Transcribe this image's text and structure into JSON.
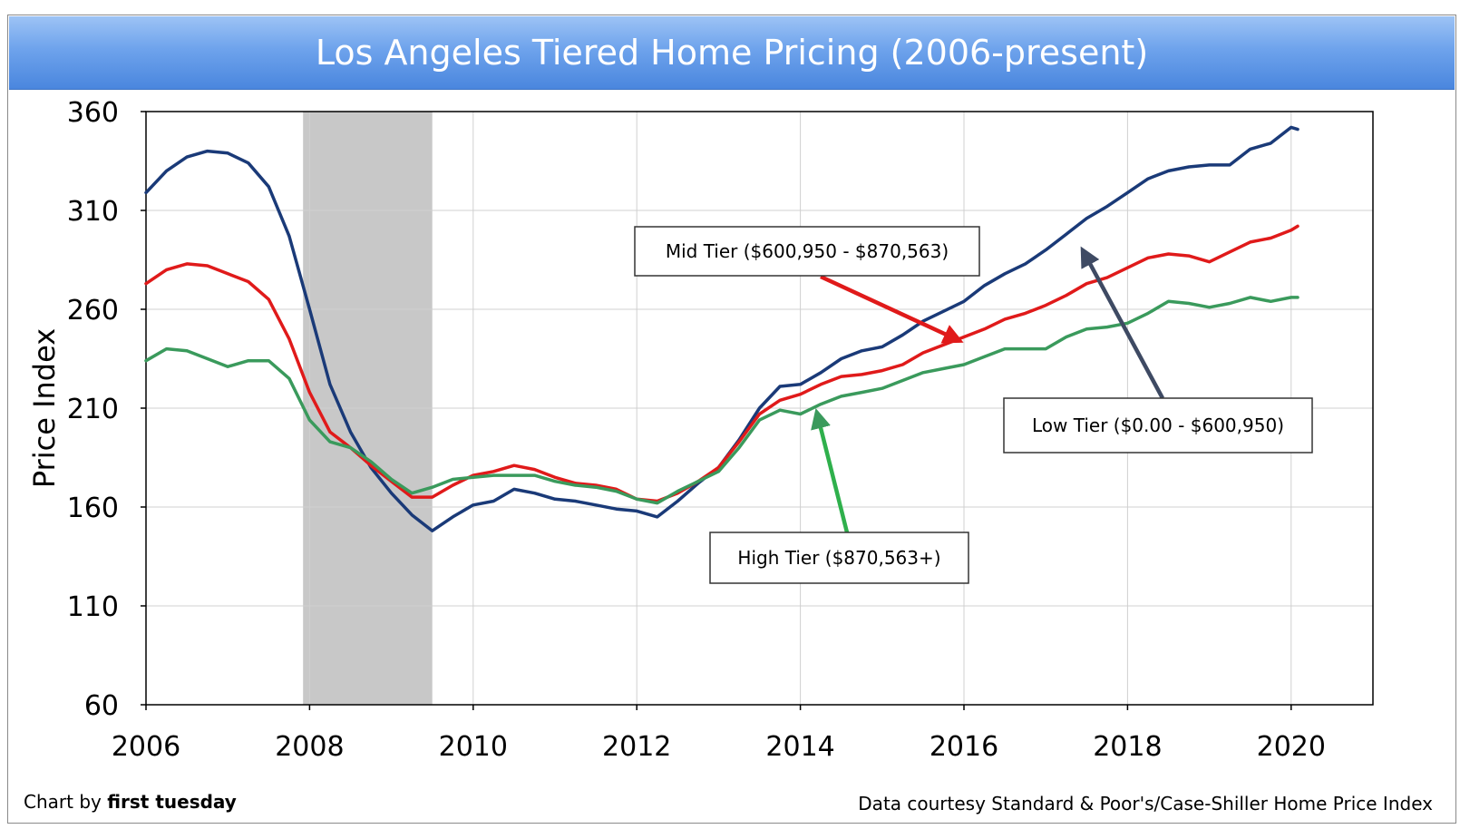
{
  "footer": {
    "credit_prefix": "Chart by ",
    "credit_brand": "first tuesday",
    "source": "Data courtesy Standard & Poor's/Case-Shiller Home Price Index"
  },
  "chart_data": {
    "type": "line",
    "title": "Los Angeles Tiered Home Pricing (2006-present)",
    "xlabel": "",
    "ylabel": "Price Index",
    "xlim": [
      2006,
      2021
    ],
    "ylim": [
      60,
      360
    ],
    "x_ticks": [
      2006,
      2008,
      2010,
      2012,
      2014,
      2016,
      2018,
      2020
    ],
    "y_ticks": [
      60,
      110,
      160,
      210,
      260,
      310,
      360
    ],
    "grid": true,
    "recession_shading": {
      "start": 2007.92,
      "end": 2009.5,
      "color": "#c8c8c8"
    },
    "series": [
      {
        "name": "Low Tier ($0.00 - $600,950)",
        "color": "#1a3a78",
        "x": [
          2006.0,
          2006.25,
          2006.5,
          2006.75,
          2007.0,
          2007.25,
          2007.5,
          2007.75,
          2008.0,
          2008.25,
          2008.5,
          2008.75,
          2009.0,
          2009.25,
          2009.5,
          2009.75,
          2010.0,
          2010.25,
          2010.5,
          2010.75,
          2011.0,
          2011.25,
          2011.5,
          2011.75,
          2012.0,
          2012.25,
          2012.5,
          2012.75,
          2013.0,
          2013.25,
          2013.5,
          2013.75,
          2014.0,
          2014.25,
          2014.5,
          2014.75,
          2015.0,
          2015.25,
          2015.5,
          2015.75,
          2016.0,
          2016.25,
          2016.5,
          2016.75,
          2017.0,
          2017.25,
          2017.5,
          2017.75,
          2018.0,
          2018.25,
          2018.5,
          2018.75,
          2019.0,
          2019.25,
          2019.5,
          2019.75,
          2020.0,
          2020.08
        ],
        "values": [
          319,
          330,
          337,
          340,
          339,
          334,
          322,
          297,
          260,
          222,
          198,
          180,
          167,
          156,
          148,
          155,
          161,
          163,
          169,
          167,
          164,
          163,
          161,
          159,
          158,
          155,
          163,
          172,
          180,
          194,
          210,
          221,
          222,
          228,
          235,
          239,
          241,
          247,
          254,
          259,
          264,
          272,
          278,
          283,
          290,
          298,
          306,
          312,
          319,
          326,
          330,
          332,
          333,
          333,
          341,
          344,
          352,
          351
        ]
      },
      {
        "name": "Mid Tier ($600,950 - $870,563)",
        "color": "#e01a1a",
        "x": [
          2006.0,
          2006.25,
          2006.5,
          2006.75,
          2007.0,
          2007.25,
          2007.5,
          2007.75,
          2008.0,
          2008.25,
          2008.5,
          2008.75,
          2009.0,
          2009.25,
          2009.5,
          2009.75,
          2010.0,
          2010.25,
          2010.5,
          2010.75,
          2011.0,
          2011.25,
          2011.5,
          2011.75,
          2012.0,
          2012.25,
          2012.5,
          2012.75,
          2013.0,
          2013.25,
          2013.5,
          2013.75,
          2014.0,
          2014.25,
          2014.5,
          2014.75,
          2015.0,
          2015.25,
          2015.5,
          2015.75,
          2016.0,
          2016.25,
          2016.5,
          2016.75,
          2017.0,
          2017.25,
          2017.5,
          2017.75,
          2018.0,
          2018.25,
          2018.5,
          2018.75,
          2019.0,
          2019.25,
          2019.5,
          2019.75,
          2020.0,
          2020.08
        ],
        "values": [
          273,
          280,
          283,
          282,
          278,
          274,
          265,
          245,
          218,
          198,
          190,
          181,
          173,
          165,
          165,
          171,
          176,
          178,
          181,
          179,
          175,
          172,
          171,
          169,
          164,
          163,
          167,
          173,
          180,
          193,
          207,
          214,
          217,
          222,
          226,
          227,
          229,
          232,
          238,
          242,
          246,
          250,
          255,
          258,
          262,
          267,
          273,
          276,
          281,
          286,
          288,
          287,
          284,
          289,
          294,
          296,
          300,
          302
        ]
      },
      {
        "name": "High Tier ($870,563+)",
        "color": "#3a9a5c",
        "x": [
          2006.0,
          2006.25,
          2006.5,
          2006.75,
          2007.0,
          2007.25,
          2007.5,
          2007.75,
          2008.0,
          2008.25,
          2008.5,
          2008.75,
          2009.0,
          2009.25,
          2009.5,
          2009.75,
          2010.0,
          2010.25,
          2010.5,
          2010.75,
          2011.0,
          2011.25,
          2011.5,
          2011.75,
          2012.0,
          2012.25,
          2012.5,
          2012.75,
          2013.0,
          2013.25,
          2013.5,
          2013.75,
          2014.0,
          2014.25,
          2014.5,
          2014.75,
          2015.0,
          2015.25,
          2015.5,
          2015.75,
          2016.0,
          2016.25,
          2016.5,
          2016.75,
          2017.0,
          2017.25,
          2017.5,
          2017.75,
          2018.0,
          2018.25,
          2018.5,
          2018.75,
          2019.0,
          2019.25,
          2019.5,
          2019.75,
          2020.0,
          2020.08
        ],
        "values": [
          234,
          240,
          239,
          235,
          231,
          234,
          234,
          225,
          204,
          193,
          190,
          183,
          174,
          167,
          170,
          174,
          175,
          176,
          176,
          176,
          173,
          171,
          170,
          168,
          164,
          162,
          168,
          173,
          178,
          190,
          204,
          209,
          207,
          212,
          216,
          218,
          220,
          224,
          228,
          230,
          232,
          236,
          240,
          240,
          240,
          246,
          250,
          251,
          253,
          258,
          264,
          263,
          261,
          263,
          266,
          264,
          266,
          266
        ]
      }
    ],
    "annotations": [
      {
        "text": "Mid Tier ($600,950 - $870,563)",
        "series": 1,
        "target": [
          2015.95,
          244
        ]
      },
      {
        "text": "Low Tier ($0.00 - $600,950)",
        "series": 0,
        "target": [
          2017.45,
          290
        ]
      },
      {
        "text": "High Tier ($870,563+)",
        "series": 2,
        "target": [
          2014.2,
          208
        ]
      }
    ]
  }
}
